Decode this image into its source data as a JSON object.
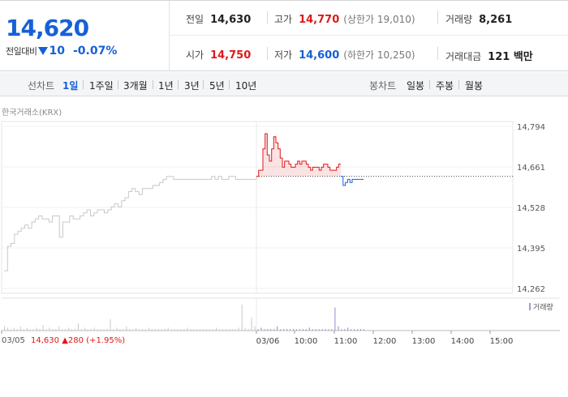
{
  "header": {
    "current_price": "14,620",
    "change_label": "전일대비",
    "change_abs": "10",
    "change_pct": "-0.07%"
  },
  "stats": {
    "prev_close_label": "전일",
    "prev_close": "14,630",
    "high_label": "고가",
    "high": "14,770",
    "upper_limit": "(상한가 19,010)",
    "volume_label": "거래량",
    "volume": "8,261",
    "open_label": "시가",
    "open": "14,750",
    "low_label": "저가",
    "low": "14,600",
    "lower_limit": "(하한가 10,250)",
    "amount_label": "거래대금",
    "amount": "121 백만"
  },
  "toolbar": {
    "line_label": "선차트",
    "line_periods": [
      "1일",
      "1주일",
      "3개월",
      "1년",
      "3년",
      "5년",
      "10년"
    ],
    "active_period": "1일",
    "candle_label": "봉차트",
    "candle_periods": [
      "일봉",
      "주봉",
      "월봉"
    ]
  },
  "source": "한국거래소(KRX)",
  "footer": {
    "date": "03/05",
    "price": "14,630",
    "change": "▲280 (+1.95%)"
  },
  "colors": {
    "up": "#e01818",
    "down": "#1660d7",
    "prev_day_line": "#c8c8c8",
    "volume_bar": "#9d9ad6"
  },
  "chart_data": {
    "type": "line",
    "y_ticks": [
      14262,
      14395,
      14528,
      14661,
      14794
    ],
    "y_tick_labels": [
      "14,262",
      "14,395",
      "14,528",
      "14,661",
      "14,794"
    ],
    "ylim": [
      14262,
      14794
    ],
    "prev_close": 14630,
    "x_tick_labels": [
      "03/05",
      "03/06",
      "10:00",
      "11:00",
      "12:00",
      "13:00",
      "14:00",
      "15:00"
    ],
    "volume_legend": "거래량",
    "series": [
      {
        "name": "03/05",
        "color": "#c8c8c8",
        "values": [
          14320,
          14400,
          14410,
          14440,
          14450,
          14460,
          14470,
          14460,
          14480,
          14490,
          14500,
          14490,
          14490,
          14480,
          14500,
          14500,
          14430,
          14480,
          14480,
          14500,
          14490,
          14490,
          14500,
          14510,
          14520,
          14500,
          14510,
          14520,
          14520,
          14510,
          14520,
          14530,
          14540,
          14530,
          14550,
          14560,
          14580,
          14590,
          14580,
          14570,
          14590,
          14590,
          14590,
          14600,
          14600,
          14610,
          14620,
          14630,
          14630,
          14620,
          14620,
          14620,
          14620,
          14620,
          14620,
          14620,
          14620,
          14620,
          14620,
          14620,
          14630,
          14620,
          14630,
          14620,
          14620,
          14630,
          14630,
          14620,
          14620,
          14620,
          14620,
          14620,
          14620,
          14630
        ]
      },
      {
        "name": "03/06",
        "color": "#e01818",
        "values": [
          14630,
          14650,
          14650,
          14720,
          14770,
          14700,
          14680,
          14720,
          14760,
          14740,
          14720,
          14690,
          14660,
          14680,
          14680,
          14670,
          14660,
          14660,
          14670,
          14680,
          14670,
          14680,
          14680,
          14670,
          14660,
          14650,
          14660,
          14660,
          14660,
          14650,
          14660,
          14670,
          14670,
          14660,
          14650,
          14650,
          14650,
          14660,
          14670,
          14670
        ]
      },
      {
        "name": "03/06-below",
        "color": "#1660d7",
        "values": [
          14630,
          14600,
          14610,
          14620,
          14610,
          14620,
          14620,
          14620,
          14620,
          14620,
          14620
        ]
      }
    ],
    "volume": [
      3,
      2,
      1,
      2,
      1,
      3,
      1,
      2,
      1,
      1,
      2,
      1,
      4,
      1,
      2,
      1,
      1,
      3,
      1,
      1,
      2,
      1,
      1,
      5,
      1,
      2,
      1,
      1,
      2,
      1,
      1,
      1,
      1,
      8,
      1,
      2,
      1,
      1,
      3,
      1,
      1,
      2,
      1,
      1,
      1,
      2,
      1,
      1,
      1,
      1,
      1,
      2,
      1,
      1,
      1,
      1,
      1,
      2,
      1,
      1,
      1,
      1,
      1,
      1,
      1,
      1,
      2,
      1,
      1,
      1,
      1,
      1,
      1,
      2,
      18,
      2,
      1,
      9,
      3,
      1,
      2,
      1,
      1,
      1,
      1,
      3,
      1,
      1,
      1,
      1,
      1,
      1,
      1,
      1,
      1,
      2,
      1,
      1,
      1,
      1,
      1,
      1,
      1,
      16,
      3,
      1,
      1,
      2,
      1,
      1,
      1,
      1,
      1
    ]
  }
}
